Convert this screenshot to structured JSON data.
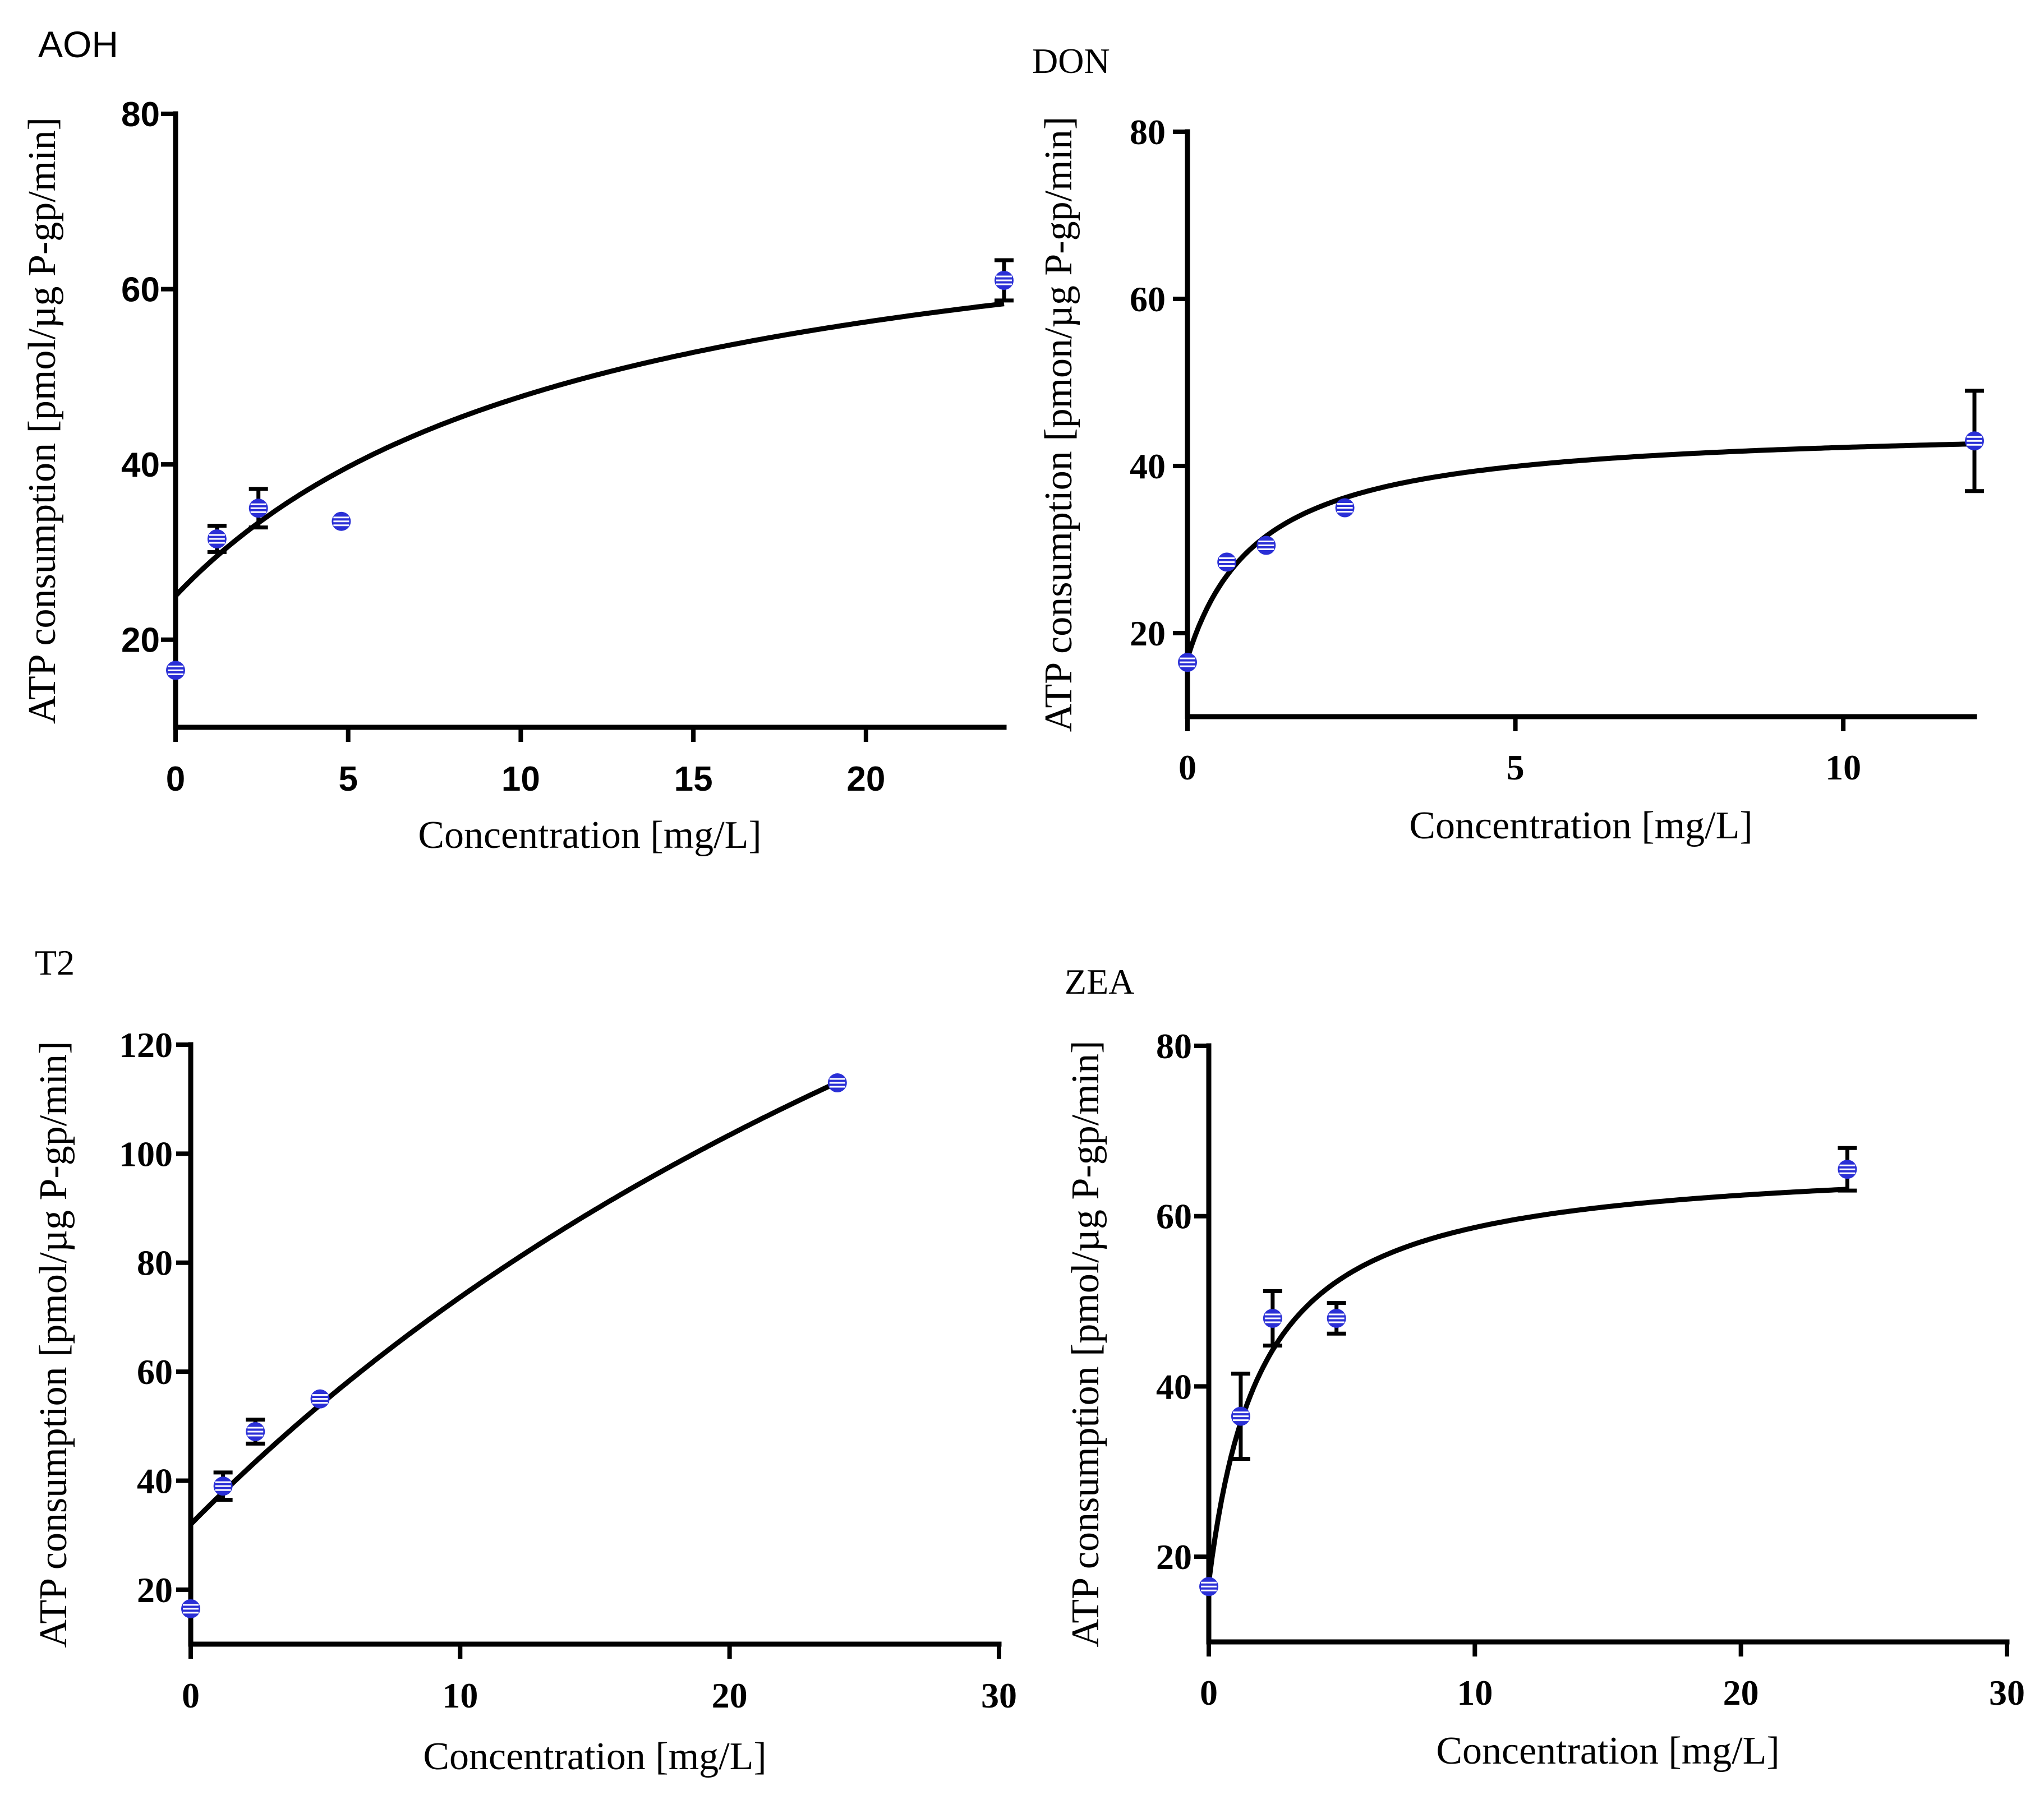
{
  "chart_data": [
    {
      "type": "scatter",
      "title": "AOH",
      "xlabel": "Concentration [mg/L]",
      "ylabel": "ATP consumption [pmol/µg P-gp/min]",
      "xlim": [
        0,
        24
      ],
      "ylim": [
        10,
        80
      ],
      "xticks": [
        0,
        5,
        10,
        15,
        20
      ],
      "yticks": [
        20,
        40,
        60,
        80
      ],
      "points": [
        {
          "x": 0,
          "y": 16.5,
          "err": 0
        },
        {
          "x": 1.2,
          "y": 31.5,
          "err": 1.5
        },
        {
          "x": 2.4,
          "y": 35,
          "err": 2.2
        },
        {
          "x": 4.8,
          "y": 33.5,
          "err": 0
        },
        {
          "x": 24,
          "y": 61,
          "err": 2.3
        }
      ],
      "fit": {
        "y0": 25,
        "vmax": 50,
        "km": 12
      },
      "font": "sans"
    },
    {
      "type": "scatter",
      "title": "DON",
      "xlabel": "Concentration [mg/L]",
      "ylabel": "ATP consumption [pmon/µg P-gp/min]",
      "xlim": [
        0,
        12
      ],
      "ylim": [
        10,
        80
      ],
      "xticks": [
        0,
        5,
        10
      ],
      "yticks": [
        20,
        40,
        60,
        80
      ],
      "points": [
        {
          "x": 0,
          "y": 16.5,
          "err": 0
        },
        {
          "x": 0.6,
          "y": 28.5,
          "err": 0
        },
        {
          "x": 1.2,
          "y": 30.5,
          "err": 0
        },
        {
          "x": 2.4,
          "y": 35,
          "err": 0
        },
        {
          "x": 12,
          "y": 43,
          "err": 6
        }
      ],
      "fit": {
        "y0": 17,
        "vmax": 28,
        "km": 1.1
      },
      "font": "serif"
    },
    {
      "type": "scatter",
      "title": "T2",
      "xlabel": "Concentration [mg/L]",
      "ylabel": "ATP consumption [pmol/µg P-gp/min]",
      "xlim": [
        0,
        30
      ],
      "ylim": [
        10,
        120
      ],
      "xticks": [
        0,
        10,
        20,
        30
      ],
      "yticks": [
        20,
        40,
        60,
        80,
        100,
        120
      ],
      "points": [
        {
          "x": 0,
          "y": 16.5,
          "err": 0
        },
        {
          "x": 1.2,
          "y": 39,
          "err": 2.5
        },
        {
          "x": 2.4,
          "y": 49,
          "err": 2.2
        },
        {
          "x": 4.8,
          "y": 55,
          "err": 0
        },
        {
          "x": 24,
          "y": 113,
          "err": 0
        }
      ],
      "fit": {
        "y0": 32,
        "vmax": 250,
        "km": 50
      },
      "font": "serif"
    },
    {
      "type": "scatter",
      "title": "ZEA",
      "xlabel": "Concentration [mg/L]",
      "ylabel": "ATP consumption [pmol/µg P-gp/min]",
      "xlim": [
        0,
        30
      ],
      "ylim": [
        10,
        80
      ],
      "xticks": [
        0,
        10,
        20,
        30
      ],
      "yticks": [
        20,
        40,
        60,
        80
      ],
      "points": [
        {
          "x": 0,
          "y": 16.5,
          "err": 0
        },
        {
          "x": 1.2,
          "y": 36.5,
          "err": 5
        },
        {
          "x": 2.4,
          "y": 48,
          "err": 3.2
        },
        {
          "x": 4.8,
          "y": 48,
          "err": 1.8
        },
        {
          "x": 24,
          "y": 65.5,
          "err": 2.5
        }
      ],
      "fit": {
        "y0": 17,
        "vmax": 50,
        "km": 2
      },
      "font": "serif"
    }
  ]
}
